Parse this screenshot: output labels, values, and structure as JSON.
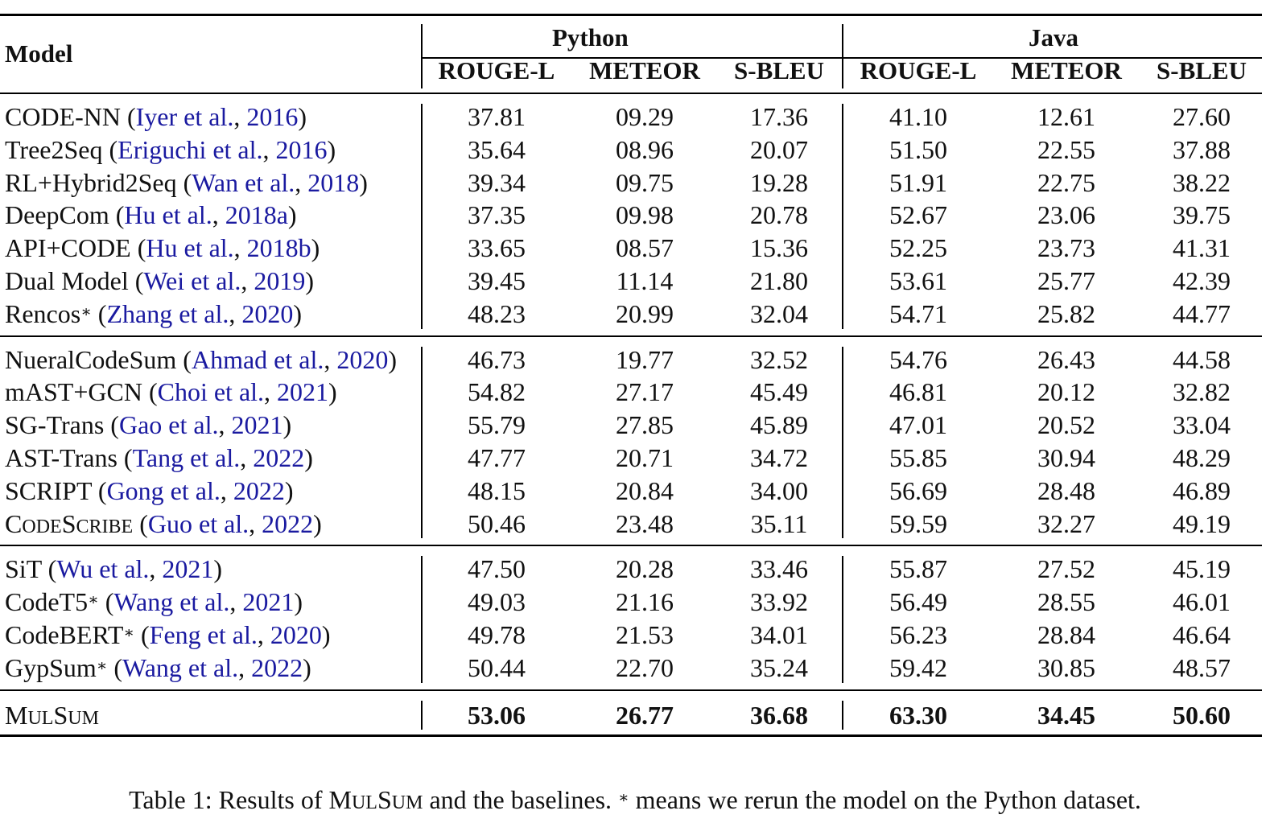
{
  "table": {
    "header": {
      "model_label": "Model",
      "groups": [
        "Python",
        "Java"
      ],
      "metrics": [
        "ROUGE-L",
        "METEOR",
        "S-BLEU",
        "ROUGE-L",
        "METEOR",
        "S-BLEU"
      ]
    },
    "groups": [
      [
        {
          "name": "CODE-NN",
          "star": "",
          "smallcaps": false,
          "cite_author": "Iyer et al.",
          "cite_year": "2016",
          "values": [
            "37.81",
            "09.29",
            "17.36",
            "41.10",
            "12.61",
            "27.60"
          ]
        },
        {
          "name": "Tree2Seq",
          "star": "",
          "smallcaps": false,
          "cite_author": "Eriguchi et al.",
          "cite_year": "2016",
          "values": [
            "35.64",
            "08.96",
            "20.07",
            "51.50",
            "22.55",
            "37.88"
          ]
        },
        {
          "name": "RL+Hybrid2Seq",
          "star": "",
          "smallcaps": false,
          "cite_author": "Wan et al.",
          "cite_year": "2018",
          "values": [
            "39.34",
            "09.75",
            "19.28",
            "51.91",
            "22.75",
            "38.22"
          ]
        },
        {
          "name": "DeepCom",
          "star": "",
          "smallcaps": false,
          "cite_author": "Hu et al.",
          "cite_year": "2018a",
          "values": [
            "37.35",
            "09.98",
            "20.78",
            "52.67",
            "23.06",
            "39.75"
          ]
        },
        {
          "name": "API+CODE",
          "star": "",
          "smallcaps": false,
          "cite_author": "Hu et al.",
          "cite_year": "2018b",
          "values": [
            "33.65",
            "08.57",
            "15.36",
            "52.25",
            "23.73",
            "41.31"
          ]
        },
        {
          "name": "Dual Model",
          "star": "",
          "smallcaps": false,
          "cite_author": "Wei et al.",
          "cite_year": "2019",
          "values": [
            "39.45",
            "11.14",
            "21.80",
            "53.61",
            "25.77",
            "42.39"
          ]
        },
        {
          "name": "Rencos",
          "star": "∗",
          "smallcaps": false,
          "cite_author": "Zhang et al.",
          "cite_year": "2020",
          "values": [
            "48.23",
            "20.99",
            "32.04",
            "54.71",
            "25.82",
            "44.77"
          ]
        }
      ],
      [
        {
          "name": "NueralCodeSum",
          "star": "",
          "smallcaps": false,
          "cite_author": "Ahmad et al.",
          "cite_year": "2020",
          "values": [
            "46.73",
            "19.77",
            "32.52",
            "54.76",
            "26.43",
            "44.58"
          ]
        },
        {
          "name": "mAST+GCN",
          "star": "",
          "smallcaps": false,
          "cite_author": "Choi et al.",
          "cite_year": "2021",
          "values": [
            "54.82",
            "27.17",
            "45.49",
            "46.81",
            "20.12",
            "32.82"
          ]
        },
        {
          "name": "SG-Trans",
          "star": "",
          "smallcaps": false,
          "cite_author": "Gao et al.",
          "cite_year": "2021",
          "values": [
            "55.79",
            "27.85",
            "45.89",
            "47.01",
            "20.52",
            "33.04"
          ]
        },
        {
          "name": "AST-Trans",
          "star": "",
          "smallcaps": false,
          "cite_author": "Tang et al.",
          "cite_year": "2022",
          "values": [
            "47.77",
            "20.71",
            "34.72",
            "55.85",
            "30.94",
            "48.29"
          ]
        },
        {
          "name": "SCRIPT",
          "star": "",
          "smallcaps": false,
          "cite_author": "Gong et al.",
          "cite_year": "2022",
          "values": [
            "48.15",
            "20.84",
            "34.00",
            "56.69",
            "28.48",
            "46.89"
          ]
        },
        {
          "name": "CodeScribe",
          "star": "",
          "smallcaps": true,
          "cite_author": "Guo et al.",
          "cite_year": "2022",
          "values": [
            "50.46",
            "23.48",
            "35.11",
            "59.59",
            "32.27",
            "49.19"
          ]
        }
      ],
      [
        {
          "name": "SiT",
          "star": "",
          "smallcaps": false,
          "cite_author": "Wu et al.",
          "cite_year": "2021",
          "values": [
            "47.50",
            "20.28",
            "33.46",
            "55.87",
            "27.52",
            "45.19"
          ]
        },
        {
          "name": "CodeT5",
          "star": "∗",
          "smallcaps": false,
          "cite_author": "Wang et al.",
          "cite_year": "2021",
          "values": [
            "49.03",
            "21.16",
            "33.92",
            "56.49",
            "28.55",
            "46.01"
          ]
        },
        {
          "name": "CodeBERT",
          "star": "∗",
          "smallcaps": false,
          "cite_author": "Feng et al.",
          "cite_year": "2020",
          "values": [
            "49.78",
            "21.53",
            "34.01",
            "56.23",
            "28.84",
            "46.64"
          ]
        },
        {
          "name": "GypSum",
          "star": "∗",
          "smallcaps": false,
          "cite_author": "Wang et al.",
          "cite_year": "2022",
          "values": [
            "50.44",
            "22.70",
            "35.24",
            "59.42",
            "30.85",
            "48.57"
          ]
        }
      ]
    ],
    "final_row": {
      "name": "MulSum",
      "values": [
        "53.06",
        "26.77",
        "36.68",
        "63.30",
        "34.45",
        "50.60"
      ]
    }
  },
  "caption": {
    "prefix": "Table 1: Results of ",
    "model": "MulSum",
    "middle": " and the baselines. ",
    "star": "∗",
    "suffix": " means we rerun the model on the Python dataset."
  }
}
